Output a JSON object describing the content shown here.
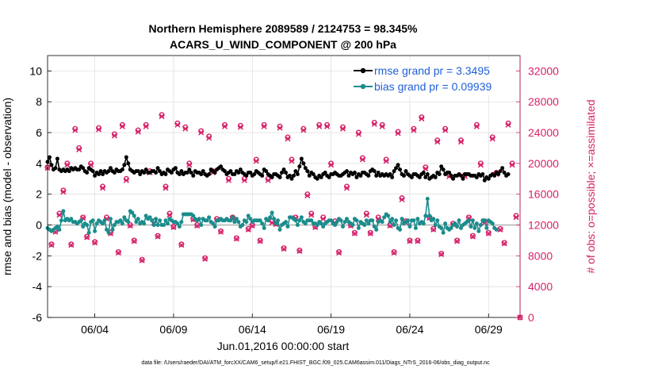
{
  "chart_data": {
    "type": "line",
    "title_line1": "Northern Hemisphere 2089589 / 2124753 = 98.345%",
    "title_line2": "ACARS_U_WIND_COMPONENT @ 200 hPa",
    "xlabel": "Jun.01,2016 00:00:00 start",
    "ylabel_left": "rmse and bias (model - observation)",
    "ylabel_right": "# of obs: o=possible; ×=assimilated",
    "footer": "data file: /Users/raeder/DAI/ATM_forcXX/CAM6_setup/f.e21.FHIST_BGC.f09_025.CAM6assim.011/Diags_NTrS_2016-06/obs_diag_output.nc",
    "xlim": [
      1,
      31
    ],
    "x_ticks": [
      4,
      9,
      14,
      19,
      24,
      29
    ],
    "x_tick_labels": [
      "06/04",
      "06/09",
      "06/14",
      "06/19",
      "06/24",
      "06/29"
    ],
    "ylim_left": [
      -6,
      11
    ],
    "y_ticks_left": [
      -6,
      -4,
      -2,
      0,
      2,
      4,
      6,
      8,
      10
    ],
    "ylim_right": [
      0,
      34000
    ],
    "y_ticks_right": [
      0,
      4000,
      8000,
      12000,
      16000,
      20000,
      24000,
      28000,
      32000
    ],
    "grid": true,
    "legend_position": "top-right",
    "colors": {
      "rmse": "#000000",
      "bias": "#1a8c8c",
      "obs": "#d6226a",
      "zero_line": "#b0b0b0",
      "grid": "#e0e0e0",
      "legend_text": "#1f5fd6"
    },
    "series": [
      {
        "name": "rmse grand pr = 3.3495",
        "axis": "left",
        "marker": "filled-circle",
        "x_start": 1,
        "x_step": 0.125,
        "values": [
          4.1,
          4.4,
          3.9,
          3.6,
          3.7,
          4.3,
          3.6,
          3.5,
          3.6,
          3.5,
          3.6,
          3.5,
          3.7,
          3.6,
          3.7,
          3.6,
          3.6,
          3.8,
          3.7,
          3.5,
          3.4,
          3.7,
          3.6,
          3.5,
          3.2,
          3.4,
          3.3,
          3.5,
          3.3,
          3.5,
          3.4,
          3.5,
          3.7,
          3.5,
          3.4,
          3.6,
          3.5,
          3.5,
          3.6,
          3.9,
          4.4,
          4.0,
          3.6,
          3.5,
          3.4,
          3.5,
          3.5,
          3.3,
          3.5,
          3.4,
          3.6,
          3.4,
          3.4,
          3.5,
          3.5,
          3.4,
          3.7,
          3.5,
          3.3,
          3.4,
          3.3,
          3.6,
          3.5,
          3.4,
          3.6,
          3.7,
          3.4,
          3.3,
          3.5,
          3.3,
          3.4,
          3.4,
          3.6,
          3.4,
          3.2,
          3.5,
          3.4,
          3.4,
          3.3,
          3.5,
          3.3,
          3.2,
          3.3,
          3.6,
          3.5,
          3.4,
          3.6,
          3.7,
          3.8,
          3.6,
          3.5,
          3.3,
          3.4,
          3.5,
          3.3,
          3.3,
          3.5,
          3.4,
          3.6,
          3.4,
          3.3,
          3.2,
          3.4,
          3.4,
          3.2,
          3.3,
          3.5,
          3.4,
          3.3,
          3.2,
          3.6,
          3.5,
          3.3,
          3.2,
          3.1,
          3.3,
          3.3,
          3.2,
          3.1,
          3.4,
          3.6,
          3.4,
          3.1,
          3.2,
          3.0,
          3.2,
          3.5,
          3.3,
          3.8,
          4.3,
          4.0,
          3.7,
          3.5,
          3.2,
          3.4,
          3.3,
          3.1,
          3.0,
          3.2,
          3.1,
          3.3,
          3.4,
          3.2,
          3.1,
          3.3,
          3.3,
          3.4,
          3.3,
          3.2,
          3.2,
          3.3,
          3.4,
          3.5,
          3.2,
          3.4,
          3.3,
          3.4,
          3.1,
          3.3,
          3.2,
          3.4,
          3.4,
          3.3,
          3.2,
          3.5,
          3.6,
          3.5,
          3.2,
          3.4,
          3.2,
          3.3,
          3.2,
          3.3,
          3.2,
          3.3,
          3.1,
          3.5,
          3.7,
          3.9,
          3.6,
          3.3,
          3.2,
          3.5,
          3.3,
          3.2,
          3.1,
          3.3,
          3.3,
          3.2,
          3.1,
          3.3,
          3.4,
          3.1,
          3.3,
          3.0,
          3.1,
          3.2,
          3.1,
          3.4,
          3.3,
          3.8,
          3.6,
          3.3,
          3.4,
          3.4,
          3.2,
          3.0,
          3.2,
          3.2,
          3.3,
          3.2,
          3.0,
          3.3,
          3.3,
          3.3,
          3.2,
          3.2,
          3.2,
          3.1,
          3.3,
          3.2,
          3.3,
          2.9,
          3.1,
          3.0,
          3.2,
          3.3,
          3.2,
          3.4,
          3.3,
          3.5,
          3.7,
          3.4,
          3.2,
          3.3
        ]
      },
      {
        "name": "bias grand pr = 0.09939",
        "axis": "left",
        "marker": "filled-circle",
        "x_start": 1,
        "x_step": 0.125,
        "values": [
          -0.2,
          -0.3,
          -0.4,
          -0.3,
          -0.2,
          -0.1,
          -0.3,
          0.3,
          0.9,
          0.3,
          0.4,
          0.3,
          0.4,
          0.2,
          0.2,
          0.1,
          0.2,
          0.3,
          -0.1,
          0.1,
          0.0,
          -0.5,
          0.2,
          0.3,
          -0.4,
          0.1,
          0.3,
          0.2,
          0.1,
          0.3,
          -0.3,
          -0.5,
          0.4,
          -0.3,
          0.0,
          0.2,
          0.2,
          0.3,
          0.1,
          0.5,
          0.3,
          0.2,
          0.9,
          0.8,
          0.6,
          0.2,
          0.4,
          0.1,
          0.2,
          0.1,
          0.6,
          0.4,
          0.5,
          0.3,
          0.0,
          0.4,
          0.0,
          0.3,
          0.0,
          0.0,
          0.3,
          0.1,
          0.4,
          0.3,
          0.2,
          0.2,
          0.1,
          -0.1,
          0.2,
          0.7,
          0.7,
          0.7,
          0.7,
          0.7,
          0.6,
          0.4,
          0.3,
          0.4,
          0.0,
          0.4,
          0.3,
          0.3,
          0.5,
          0.2,
          0.1,
          -0.1,
          0.3,
          0.3,
          0.4,
          0.3,
          0.3,
          0.4,
          0.3,
          0.3,
          0.5,
          0.2,
          0.4,
          0.2,
          -0.1,
          0.0,
          0.3,
          0.2,
          0.6,
          0.4,
          0.2,
          0.3,
          0.3,
          0.3,
          0.3,
          0.1,
          -0.2,
          0.4,
          0.3,
          0.5,
          0.8,
          0.4,
          0.1,
          0.3,
          -0.3,
          0.0,
          0.1,
          0.2,
          -0.1,
          0.5,
          0.5,
          0.4,
          0.3,
          0.0,
          0.3,
          0.5,
          0.2,
          0.1,
          0.3,
          0.3,
          0.3,
          0.1,
          0.1,
          0.0,
          0.2,
          0.1,
          -0.1,
          0.1,
          0.2,
          0.3,
          0.3,
          0.1,
          0.0,
          0.2,
          0.4,
          0.3,
          -0.1,
          0.2,
          0.4,
          0.2,
          0.1,
          0.0,
          0.4,
          0.3,
          -0.2,
          0.2,
          0.1,
          0.0,
          0.3,
          0.1,
          0.3,
          0.3,
          -0.1,
          -0.3,
          0.2,
          0.3,
          0.2,
          0.5,
          0.7,
          0.6,
          0.2,
          0.4,
          0.0,
          0.3,
          -0.2,
          -0.3,
          0.4,
          0.1,
          0.2,
          0.3,
          -0.1,
          0.3,
          0.3,
          -0.2,
          0.4,
          0.1,
          0.2,
          0.1,
          0.6,
          1.7,
          0.6,
          0.3,
          0.4,
          0.0,
          0.3,
          -0.1,
          -0.2,
          -0.5,
          0.1,
          -0.2,
          -0.3,
          -0.2,
          0.0,
          0.1,
          -0.1,
          0.3,
          -0.2,
          0.0,
          0.1,
          0.2,
          0.3,
          -0.1,
          0.3,
          -0.2,
          0.1,
          -0.4,
          0.0,
          0.3,
          0.3,
          -0.2,
          0.3,
          0.2,
          0.1,
          -0.2,
          -0.3
        ]
      },
      {
        "name": "possible observations",
        "axis": "right",
        "marker": "open-circle",
        "x_start": 1,
        "x_step": 0.25,
        "values": [
          19500,
          9500,
          11200,
          13500,
          16500,
          20000,
          9500,
          24500,
          22000,
          13000,
          10500,
          20000,
          9800,
          24600,
          17000,
          13000,
          11000,
          23800,
          8500,
          25000,
          18000,
          12000,
          10000,
          24300,
          7500,
          25000,
          19000,
          12500,
          10600,
          26300,
          17000,
          13500,
          11800,
          25200,
          9500,
          24700,
          20000,
          12800,
          12000,
          24200,
          7700,
          23500,
          19000,
          12800,
          11200,
          25000,
          18000,
          13000,
          10300,
          24900,
          18000,
          11500,
          12000,
          20500,
          10000,
          25000,
          18000,
          12500,
          12200,
          24800,
          9000,
          23400,
          20500,
          13000,
          8700,
          24500,
          16000,
          13500,
          11800,
          25000,
          13000,
          25000,
          20000,
          12500,
          8500,
          24700,
          17000,
          12000,
          11000,
          24000,
          20700,
          13500,
          11000,
          25300,
          13000,
          25000,
          20500,
          12000,
          8500,
          24100,
          15500,
          12500,
          10000,
          24500,
          10000,
          26000,
          19500,
          13000,
          11500,
          23000,
          8300,
          24500,
          18500,
          12200,
          10000,
          23000,
          18500,
          13000,
          10600,
          25000,
          20000,
          12500,
          11000,
          23400,
          18800,
          11500,
          9700,
          25200,
          20000,
          13200,
          0
        ]
      },
      {
        "name": "assimilated observations",
        "axis": "right",
        "marker": "x",
        "x_start": 1,
        "x_step": 0.25,
        "values": [
          19400,
          9400,
          11100,
          13300,
          16300,
          19800,
          9400,
          24300,
          21800,
          12900,
          10400,
          19800,
          9700,
          24400,
          16800,
          12800,
          10900,
          23600,
          8400,
          24800,
          17800,
          11900,
          9900,
          24100,
          7400,
          24800,
          18800,
          12300,
          10500,
          26100,
          16800,
          13300,
          11700,
          25000,
          9400,
          24500,
          19800,
          12700,
          11900,
          24000,
          7600,
          23300,
          18800,
          12700,
          11100,
          24800,
          17800,
          12900,
          10200,
          24700,
          17800,
          11400,
          11900,
          20300,
          9900,
          24800,
          17800,
          12300,
          12100,
          24600,
          8900,
          23200,
          20300,
          12900,
          8600,
          24300,
          15800,
          13300,
          11700,
          24800,
          12800,
          24800,
          19800,
          12300,
          8400,
          24500,
          16800,
          11900,
          10900,
          23800,
          20500,
          13300,
          10900,
          25100,
          12800,
          24800,
          20300,
          11900,
          8400,
          23900,
          15300,
          12300,
          9900,
          24300,
          9900,
          25800,
          19300,
          12900,
          11400,
          22800,
          8200,
          24300,
          18300,
          12100,
          9900,
          22800,
          18300,
          12900,
          10500,
          24800,
          19800,
          12300,
          10900,
          23200,
          18600,
          11400,
          9600,
          25000,
          19800,
          13000,
          0
        ]
      }
    ]
  }
}
